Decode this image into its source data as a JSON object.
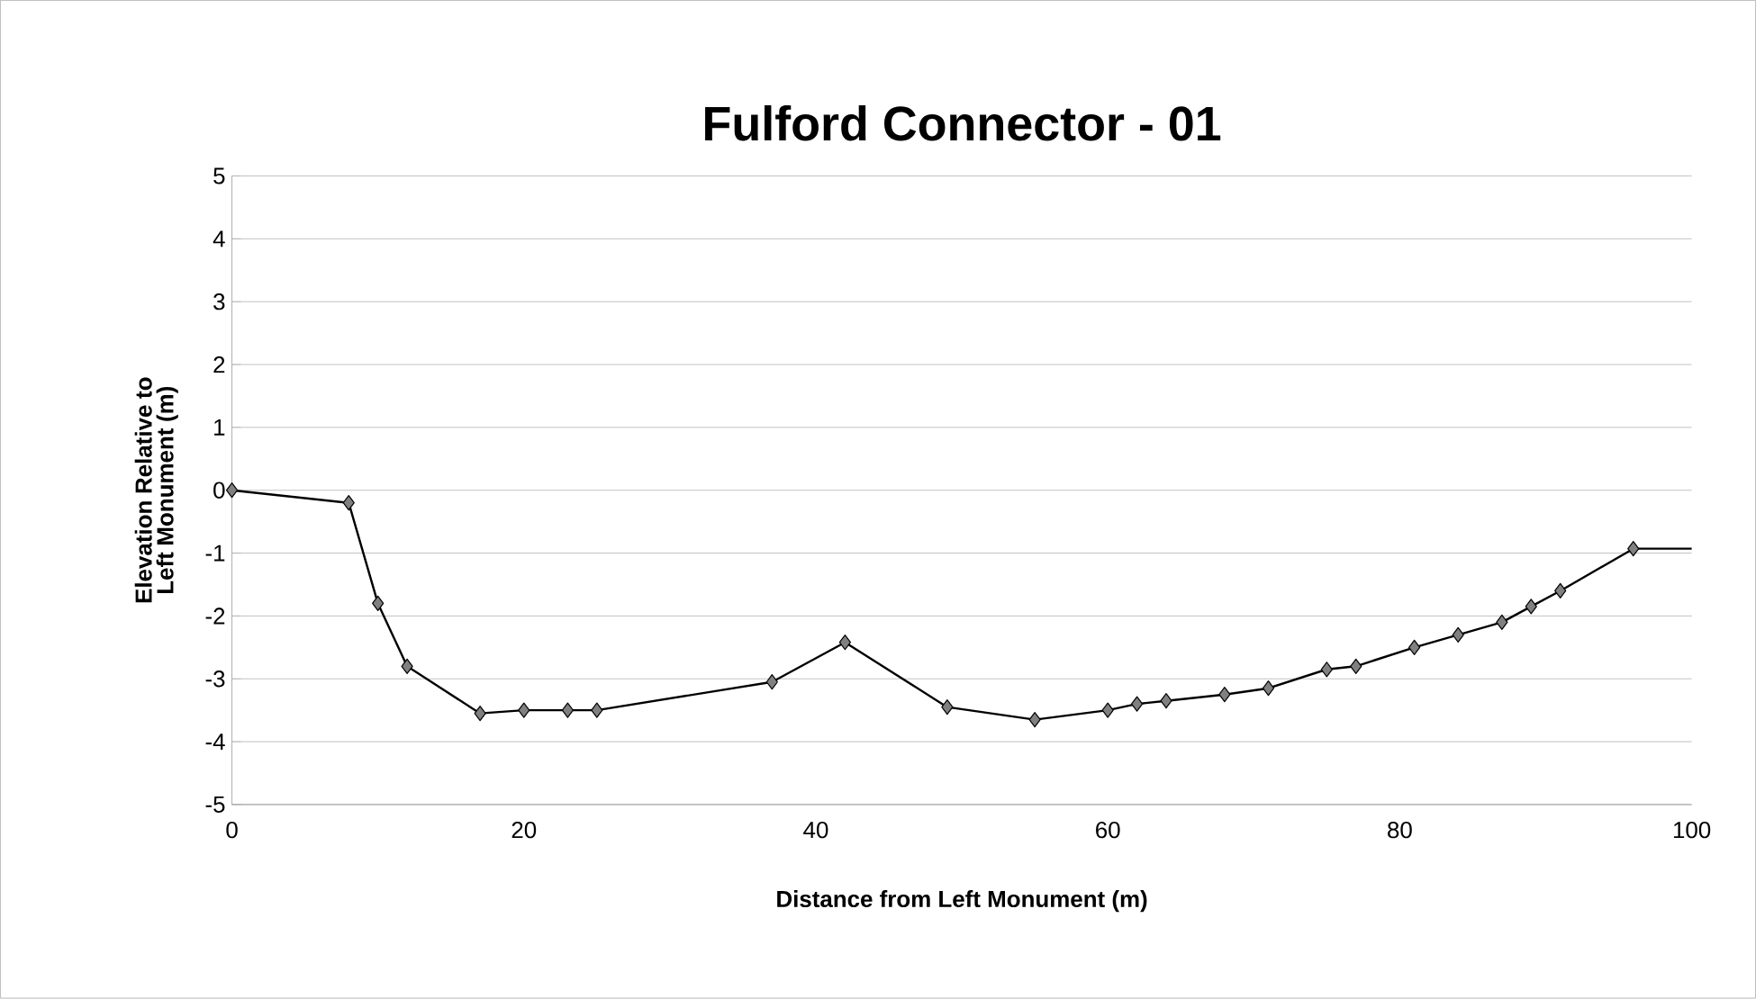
{
  "chart_data": {
    "type": "line",
    "title": "Fulford Connector - 01",
    "xlabel": "Distance from Left Monument (m)",
    "ylabel": "Elevation Relative to Left Monument (m)",
    "xlim": [
      0,
      100
    ],
    "xticks": [
      0,
      20,
      40,
      60,
      80,
      100
    ],
    "ylim": [
      -5,
      5
    ],
    "yticks": [
      -5,
      -4,
      -3,
      -2,
      -1,
      0,
      1,
      2,
      3,
      4,
      5
    ],
    "grid": "y",
    "marker": "diamond",
    "series": [
      {
        "color": "#000000",
        "x": [
          0,
          8,
          10,
          12,
          17,
          20,
          23,
          25,
          37,
          42,
          49,
          55,
          60,
          62,
          64,
          68,
          71,
          75,
          77,
          81,
          84,
          87,
          89,
          91,
          96
        ],
        "values": [
          0,
          -0.2,
          -1.8,
          -2.8,
          -3.55,
          -3.5,
          -3.5,
          -3.5,
          -3.05,
          -2.42,
          -3.45,
          -3.65,
          -3.5,
          -3.4,
          -3.35,
          -3.25,
          -3.15,
          -2.85,
          -2.8,
          -2.5,
          -2.3,
          -2.1,
          -1.85,
          -1.6,
          -0.93
        ]
      },
      {
        "color": "#000000",
        "marker": "none",
        "x": [
          96,
          100
        ],
        "values": [
          -0.93,
          -0.93
        ]
      }
    ]
  }
}
